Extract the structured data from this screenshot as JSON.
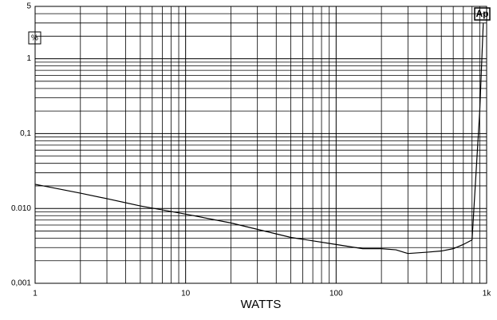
{
  "chart_data": {
    "type": "line",
    "x_label": "WATTS",
    "annotations": [
      "%",
      "Ap"
    ],
    "x": [
      1,
      2,
      3,
      5,
      10,
      20,
      50,
      100,
      150,
      200,
      250,
      300,
      400,
      500,
      600,
      700,
      800,
      900,
      950
    ],
    "series": [
      {
        "color": "#000000",
        "values": [
          0.021,
          0.016,
          0.0135,
          0.0108,
          0.0084,
          0.0064,
          0.0041,
          0.0033,
          0.0029,
          0.0029,
          0.0028,
          0.0025,
          0.0026,
          0.0027,
          0.0029,
          0.0033,
          0.0038,
          0.2,
          3.0
        ]
      }
    ],
    "xlim": [
      1,
      1000
    ],
    "ylim": [
      0.001,
      5
    ],
    "xscale": "log",
    "yscale": "log",
    "xticks": [
      1,
      10,
      100,
      {
        "value": 1000,
        "label": "1k"
      }
    ],
    "yticks": [
      {
        "value": 0.001,
        "label": "0,001"
      },
      {
        "value": 0.01,
        "label": "0.010"
      },
      {
        "value": 0.1,
        "label": "0,1"
      },
      1,
      5
    ],
    "xgrid": [
      2,
      3,
      4,
      5,
      6,
      7,
      8,
      9,
      20,
      30,
      40,
      50,
      60,
      70,
      80,
      90,
      200,
      300,
      400,
      500,
      600,
      700,
      800,
      900
    ],
    "ygrid": [
      0.002,
      0.003,
      0.004,
      0.005,
      0.006,
      0.007,
      0.008,
      0.009,
      0.02,
      0.03,
      0.04,
      0.05,
      0.06,
      0.07,
      0.08,
      0.09,
      0.2,
      0.3,
      0.4,
      0.5,
      0.6,
      0.7,
      0.8,
      0.9,
      2,
      3,
      4
    ],
    "grid": true
  }
}
